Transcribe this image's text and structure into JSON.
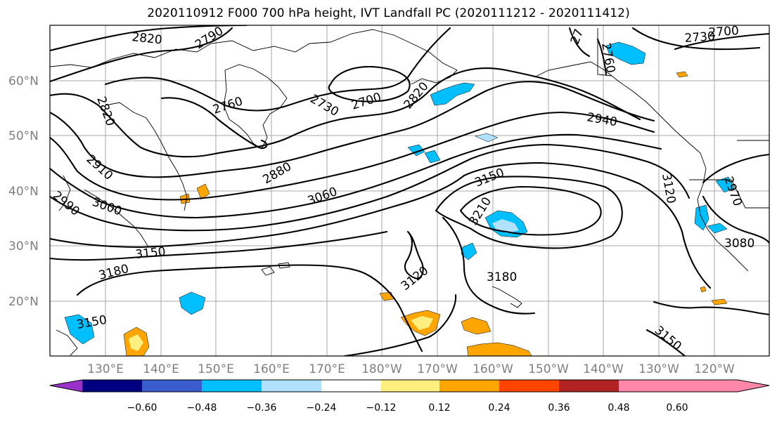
{
  "title": "2020110912 F000 700 hPa height, IVT Landfall PC (2020111212 - 2020111412)",
  "lat_labels": [
    "60°N",
    "50°N",
    "40°N",
    "30°N",
    "20°N"
  ],
  "lon_labels": [
    "130°E",
    "140°E",
    "150°E",
    "160°E",
    "170°E",
    "180°W",
    "170°W",
    "160°W",
    "150°W",
    "140°W",
    "130°W",
    "120°W"
  ],
  "contour_labels": {
    "c2820a": "2820",
    "c2790": "2790",
    "c2820b": "2820",
    "c2760a": "2760",
    "c2730": "2730",
    "c2700": "2700",
    "c2820c": "2820",
    "c2910": "2910",
    "c3000": "3000",
    "c2990": "2990",
    "c2880": "2880",
    "c3060": "3060",
    "c3150a": "3150",
    "c3180a": "3180",
    "c2940": "2940",
    "c3150b": "3150",
    "c3210": "3210",
    "c3120a": "3120",
    "c3180b": "3180",
    "c3120b": "3120",
    "c2970": "2970",
    "c3080": "3080",
    "c3150c": "3150",
    "c3150d": "3150",
    "c2730b": "2730",
    "c2700b": "2700",
    "c2760b": "2760",
    "c27x": "27"
  },
  "colorbar": {
    "colors": [
      "#9932cc",
      "#000080",
      "#3a5ccc",
      "#00bfff",
      "#b0e2ff",
      "#ffffff",
      "#ffee80",
      "#ffa500",
      "#ff4500",
      "#b22222",
      "#ff88aa"
    ],
    "tick_labels": [
      "−0.60",
      "−0.48",
      "−0.36",
      "−0.24",
      "−0.12",
      "0.12",
      "0.24",
      "0.36",
      "0.48",
      "0.60"
    ]
  }
}
